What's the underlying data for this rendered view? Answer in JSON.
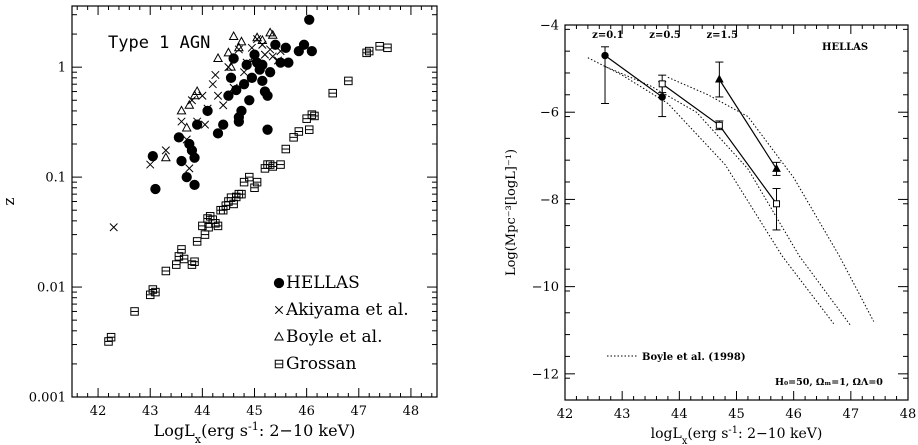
{
  "chart_data": [
    {
      "type": "scatter",
      "title": "Type 1 AGN",
      "xlabel": "LogL",
      "xlabel_sub": "x",
      "xlabel_paren": "(erg s",
      "xlabel_sup": "-1",
      "xlabel_tail": ": 2−10 keV)",
      "ylabel": "z",
      "yscale": "log",
      "xlim": [
        41.5,
        48.5
      ],
      "ylim": [
        0.001,
        3.6
      ],
      "xticks": [
        42,
        43,
        44,
        45,
        46,
        47,
        48
      ],
      "xticklabels": [
        "42",
        "43",
        "44",
        "45",
        "46",
        "47",
        "48"
      ],
      "yticks": [
        0.001,
        0.01,
        0.1,
        1
      ],
      "yticklabels": [
        "0.001",
        "0.01",
        "0.1",
        "1"
      ],
      "legend_position": "bottom-right",
      "series": [
        {
          "name": "HELLAS",
          "marker": "filled-circle",
          "points": [
            [
              43.05,
              0.155
            ],
            [
              43.1,
              0.078
            ],
            [
              43.55,
              0.23
            ],
            [
              43.6,
              0.14
            ],
            [
              43.7,
              0.1
            ],
            [
              43.75,
              0.2
            ],
            [
              43.8,
              0.175
            ],
            [
              43.85,
              0.15
            ],
            [
              43.9,
              0.3
            ],
            [
              43.85,
              0.085
            ],
            [
              44.1,
              0.4
            ],
            [
              44.3,
              0.25
            ],
            [
              44.4,
              0.3
            ],
            [
              44.5,
              0.55
            ],
            [
              44.55,
              0.8
            ],
            [
              44.6,
              1.2
            ],
            [
              44.65,
              0.62
            ],
            [
              44.7,
              0.35
            ],
            [
              44.75,
              0.4
            ],
            [
              44.7,
              0.32
            ],
            [
              44.8,
              0.7
            ],
            [
              44.85,
              1.05
            ],
            [
              44.9,
              0.5
            ],
            [
              44.95,
              0.8
            ],
            [
              45.0,
              1.3
            ],
            [
              45.05,
              1.1
            ],
            [
              45.1,
              0.95
            ],
            [
              45.15,
              1.05
            ],
            [
              45.15,
              0.75
            ],
            [
              45.2,
              0.6
            ],
            [
              45.25,
              0.55
            ],
            [
              45.3,
              0.9
            ],
            [
              45.25,
              0.27
            ],
            [
              45.4,
              1.6
            ],
            [
              45.5,
              1.1
            ],
            [
              45.6,
              1.5
            ],
            [
              45.65,
              1.1
            ],
            [
              45.85,
              1.4
            ],
            [
              45.95,
              1.6
            ],
            [
              46.05,
              2.7
            ],
            [
              46.1,
              1.4
            ]
          ]
        },
        {
          "name": "Akiyama et al.",
          "marker": "cross",
          "points": [
            [
              42.3,
              0.035
            ],
            [
              43.0,
              0.13
            ],
            [
              43.3,
              0.175
            ],
            [
              43.6,
              0.32
            ],
            [
              43.7,
              0.22
            ],
            [
              43.75,
              0.12
            ],
            [
              43.8,
              0.5
            ],
            [
              43.9,
              0.32
            ],
            [
              44.0,
              0.55
            ],
            [
              44.05,
              0.3
            ],
            [
              44.1,
              0.42
            ],
            [
              44.2,
              0.7
            ],
            [
              44.25,
              0.85
            ],
            [
              44.3,
              0.55
            ],
            [
              44.4,
              0.45
            ],
            [
              44.5,
              1.0
            ],
            [
              44.6,
              0.65
            ],
            [
              44.7,
              1.45
            ],
            [
              44.8,
              0.9
            ],
            [
              44.85,
              1.1
            ],
            [
              44.95,
              1.5
            ],
            [
              45.0,
              1.2
            ],
            [
              45.05,
              1.8
            ],
            [
              45.15,
              1.6
            ],
            [
              45.2,
              1.3
            ],
            [
              45.3,
              1.45
            ],
            [
              45.35,
              1.25
            ],
            [
              45.45,
              1.15
            ],
            [
              45.5,
              1.4
            ]
          ]
        },
        {
          "name": "Boyle et al.",
          "marker": "open-triangle",
          "points": [
            [
              43.3,
              0.15
            ],
            [
              43.6,
              0.4
            ],
            [
              43.7,
              0.28
            ],
            [
              43.75,
              0.45
            ],
            [
              43.85,
              0.55
            ],
            [
              43.9,
              0.6
            ],
            [
              44.3,
              1.2
            ],
            [
              44.5,
              1.35
            ],
            [
              44.55,
              1.0
            ],
            [
              44.6,
              1.9
            ],
            [
              44.7,
              1.5
            ],
            [
              44.75,
              1.7
            ],
            [
              45.0,
              1.2
            ],
            [
              45.05,
              1.85
            ],
            [
              45.15,
              1.75
            ],
            [
              45.3,
              2.05
            ],
            [
              45.35,
              1.95
            ]
          ]
        },
        {
          "name": "Grossan",
          "marker": "open-square",
          "points": [
            [
              42.2,
              0.0032
            ],
            [
              42.25,
              0.0035
            ],
            [
              42.7,
              0.006
            ],
            [
              43.0,
              0.0085
            ],
            [
              43.05,
              0.0095
            ],
            [
              43.1,
              0.009
            ],
            [
              43.3,
              0.014
            ],
            [
              43.5,
              0.016
            ],
            [
              43.55,
              0.019
            ],
            [
              43.6,
              0.022
            ],
            [
              43.65,
              0.018
            ],
            [
              43.8,
              0.016
            ],
            [
              43.85,
              0.017
            ],
            [
              43.9,
              0.026
            ],
            [
              44.0,
              0.036
            ],
            [
              44.05,
              0.03
            ],
            [
              44.1,
              0.042
            ],
            [
              44.12,
              0.035
            ],
            [
              44.15,
              0.044
            ],
            [
              44.2,
              0.041
            ],
            [
              44.25,
              0.038
            ],
            [
              44.3,
              0.036
            ],
            [
              44.35,
              0.05
            ],
            [
              44.4,
              0.05
            ],
            [
              44.45,
              0.055
            ],
            [
              44.5,
              0.06
            ],
            [
              44.55,
              0.065
            ],
            [
              44.6,
              0.057
            ],
            [
              44.65,
              0.066
            ],
            [
              44.7,
              0.07
            ],
            [
              44.75,
              0.07
            ],
            [
              44.8,
              0.09
            ],
            [
              44.9,
              0.1
            ],
            [
              45.0,
              0.08
            ],
            [
              45.05,
              0.09
            ],
            [
              45.2,
              0.12
            ],
            [
              45.25,
              0.13
            ],
            [
              45.3,
              0.13
            ],
            [
              45.35,
              0.125
            ],
            [
              45.5,
              0.13
            ],
            [
              45.6,
              0.18
            ],
            [
              45.75,
              0.23
            ],
            [
              45.85,
              0.26
            ],
            [
              46.0,
              0.34
            ],
            [
              46.05,
              0.27
            ],
            [
              46.1,
              0.37
            ],
            [
              46.15,
              0.36
            ],
            [
              46.5,
              0.58
            ],
            [
              46.8,
              0.75
            ],
            [
              47.15,
              1.35
            ],
            [
              47.2,
              1.4
            ],
            [
              47.4,
              1.55
            ],
            [
              47.55,
              1.5
            ]
          ]
        }
      ]
    },
    {
      "type": "line",
      "title": "HELLAS",
      "xlabel": "logL",
      "xlabel_sub": "x",
      "xlabel_paren": "(erg s",
      "xlabel_sup": "-1",
      "xlabel_tail": ": 2−10 keV)",
      "ylabel": "Log(Mpc⁻³[logL]⁻¹)",
      "xlim": [
        42,
        48
      ],
      "ylim": [
        -12.6,
        -4
      ],
      "xticks": [
        42,
        43,
        44,
        45,
        46,
        47,
        48
      ],
      "xticklabels": [
        "42",
        "43",
        "44",
        "45",
        "46",
        "47",
        "48"
      ],
      "yticks": [
        -12,
        -10,
        -8,
        -6,
        -4
      ],
      "yticklabels": [
        "−12",
        "−10",
        "−8",
        "−6",
        "−4"
      ],
      "zlabels": [
        {
          "text": "z=0.1",
          "x": 42.75,
          "y": -4.3
        },
        {
          "text": "z=0.5",
          "x": 43.75,
          "y": -4.3
        },
        {
          "text": "z=1.5",
          "x": 44.75,
          "y": -4.3
        }
      ],
      "legend": {
        "line_label": "Boyle et al. (1998)",
        "line_style": "dotted",
        "position": "bottom-left"
      },
      "cosmology_note": "H₀=50, Ωₘ=1, ΩΛ=0",
      "series": [
        {
          "marker": "filled-circle",
          "connected": true,
          "points": [
            {
              "x": 42.7,
              "y": -4.7,
              "err_low": 1.1,
              "err_high": 0.2
            },
            {
              "x": 43.7,
              "y": -5.65,
              "err_low": 0.45,
              "err_high": 0.35
            }
          ]
        },
        {
          "marker": "open-square",
          "connected": true,
          "points": [
            {
              "x": 43.7,
              "y": -5.35,
              "err_low": 0.2,
              "err_high": 0.2
            },
            {
              "x": 44.7,
              "y": -6.3,
              "err_low": 0.1,
              "err_high": 0.1
            },
            {
              "x": 45.7,
              "y": -8.1,
              "err_low": 0.6,
              "err_high": 0.35
            }
          ]
        },
        {
          "marker": "filled-triangle",
          "connected": true,
          "points": [
            {
              "x": 44.7,
              "y": -5.25,
              "err_low": 0.4,
              "err_high": 0.4
            },
            {
              "x": 45.7,
              "y": -7.3,
              "err_low": 0.15,
              "err_high": 0.15
            }
          ]
        }
      ],
      "model_curves": [
        {
          "name": "Boyle et al. (1998) z=0.1",
          "style": "dotted",
          "points": [
            [
              42.4,
              -4.75
            ],
            [
              43.0,
              -5.15
            ],
            [
              43.8,
              -5.8
            ],
            [
              44.8,
              -7.2
            ],
            [
              45.8,
              -9.3
            ],
            [
              46.7,
              -10.85
            ]
          ]
        },
        {
          "name": "Boyle et al. (1998) z=0.5",
          "style": "dotted",
          "points": [
            [
              42.7,
              -4.95
            ],
            [
              43.5,
              -5.4
            ],
            [
              44.3,
              -6.0
            ],
            [
              45.2,
              -7.3
            ],
            [
              46.1,
              -9.3
            ],
            [
              47.0,
              -10.9
            ]
          ]
        },
        {
          "name": "Boyle et al. (1998) z=1.5",
          "style": "dotted",
          "points": [
            [
              43.8,
              -5.2
            ],
            [
              44.5,
              -5.6
            ],
            [
              45.2,
              -6.1
            ],
            [
              46.0,
              -7.5
            ],
            [
              46.8,
              -9.3
            ],
            [
              47.4,
              -10.8
            ]
          ]
        }
      ]
    }
  ]
}
